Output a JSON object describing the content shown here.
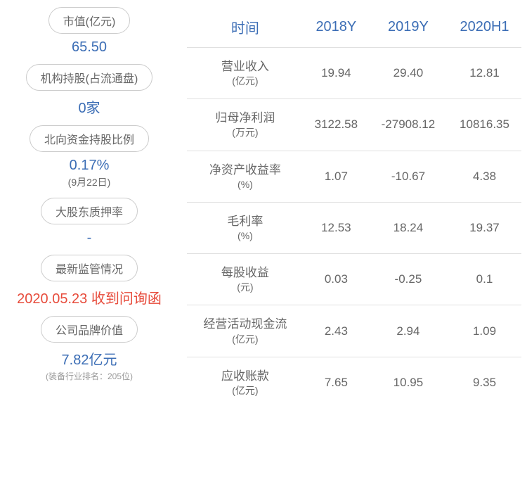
{
  "left_panel": {
    "items": [
      {
        "label": "市值(亿元)",
        "value": "65.50",
        "value_color": "blue"
      },
      {
        "label": "机构持股(占流通盘)",
        "value": "0家",
        "value_color": "blue"
      },
      {
        "label": "北向资金持股比例",
        "value": "0.17%",
        "sub": "(9月22日)",
        "value_color": "blue"
      },
      {
        "label": "大股东质押率",
        "value": "-",
        "value_color": "blue"
      },
      {
        "label": "最新监管情况",
        "value": "2020.05.23 收到问询函",
        "value_color": "red"
      },
      {
        "label": "公司品牌价值",
        "value": "7.82亿元",
        "sub_small": "(装备行业排名：205位)",
        "value_color": "blue"
      }
    ]
  },
  "table": {
    "headers": [
      "时间",
      "2018Y",
      "2019Y",
      "2020H1"
    ],
    "header_color": "#3b6db5",
    "rows": [
      {
        "metric": "营业收入",
        "unit": "(亿元)",
        "values": [
          "19.94",
          "29.40",
          "12.81"
        ]
      },
      {
        "metric": "归母净利润",
        "unit": "(万元)",
        "values": [
          "3122.58",
          "-27908.12",
          "10816.35"
        ]
      },
      {
        "metric": "净资产收益率",
        "unit": "(%)",
        "values": [
          "1.07",
          "-10.67",
          "4.38"
        ]
      },
      {
        "metric": "毛利率",
        "unit": "(%)",
        "values": [
          "12.53",
          "18.24",
          "19.37"
        ]
      },
      {
        "metric": "每股收益",
        "unit": "(元)",
        "values": [
          "0.03",
          "-0.25",
          "0.1"
        ]
      },
      {
        "metric": "经营活动现金流",
        "unit": "(亿元)",
        "values": [
          "2.43",
          "2.94",
          "1.09"
        ]
      },
      {
        "metric": "应收账款",
        "unit": "(亿元)",
        "values": [
          "7.65",
          "10.95",
          "9.35"
        ]
      }
    ],
    "text_color": "#666666",
    "border_color": "#e0e0e0"
  },
  "colors": {
    "blue": "#3b6db5",
    "red": "#e74c3c",
    "gray": "#666666",
    "background": "#ffffff"
  }
}
